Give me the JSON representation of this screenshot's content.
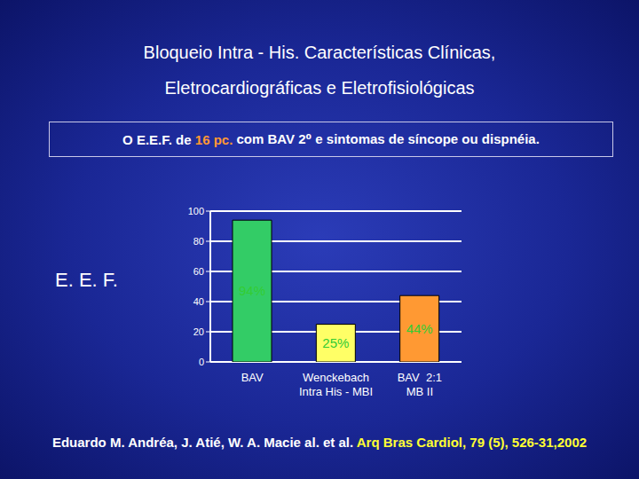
{
  "chart_data": {
    "type": "bar",
    "title": "Bloqueio Intra - His. Características Clínicas,",
    "subtitle": "Eletrocardiográficas e Eletrofisiológicas",
    "annotation_parts": [
      "O E.E.F. de ",
      "16 pc.",
      " com BAV 2⁰ e sintomas de síncope ou dispnéia."
    ],
    "y_label": "E. E. F.",
    "categories": [
      "BAV",
      "Wenckebach\nIntra His - MBI",
      "BAV  2:1\nMB II"
    ],
    "values": [
      94,
      25,
      44
    ],
    "value_labels": [
      "94%",
      "25%",
      "44%"
    ],
    "data_labels": true,
    "colors": [
      "#33cc66",
      "#ffff66",
      "#ff9933"
    ],
    "ylim": [
      0,
      100
    ],
    "yticks": [
      0,
      20,
      40,
      60,
      80,
      100
    ],
    "grid": true,
    "source": "Eduardo M. Andréa, J. Atié, W. A. Macie al. et al.",
    "source_journal": "Arq Bras Cardiol, 79 (5), 526-31,2002"
  }
}
